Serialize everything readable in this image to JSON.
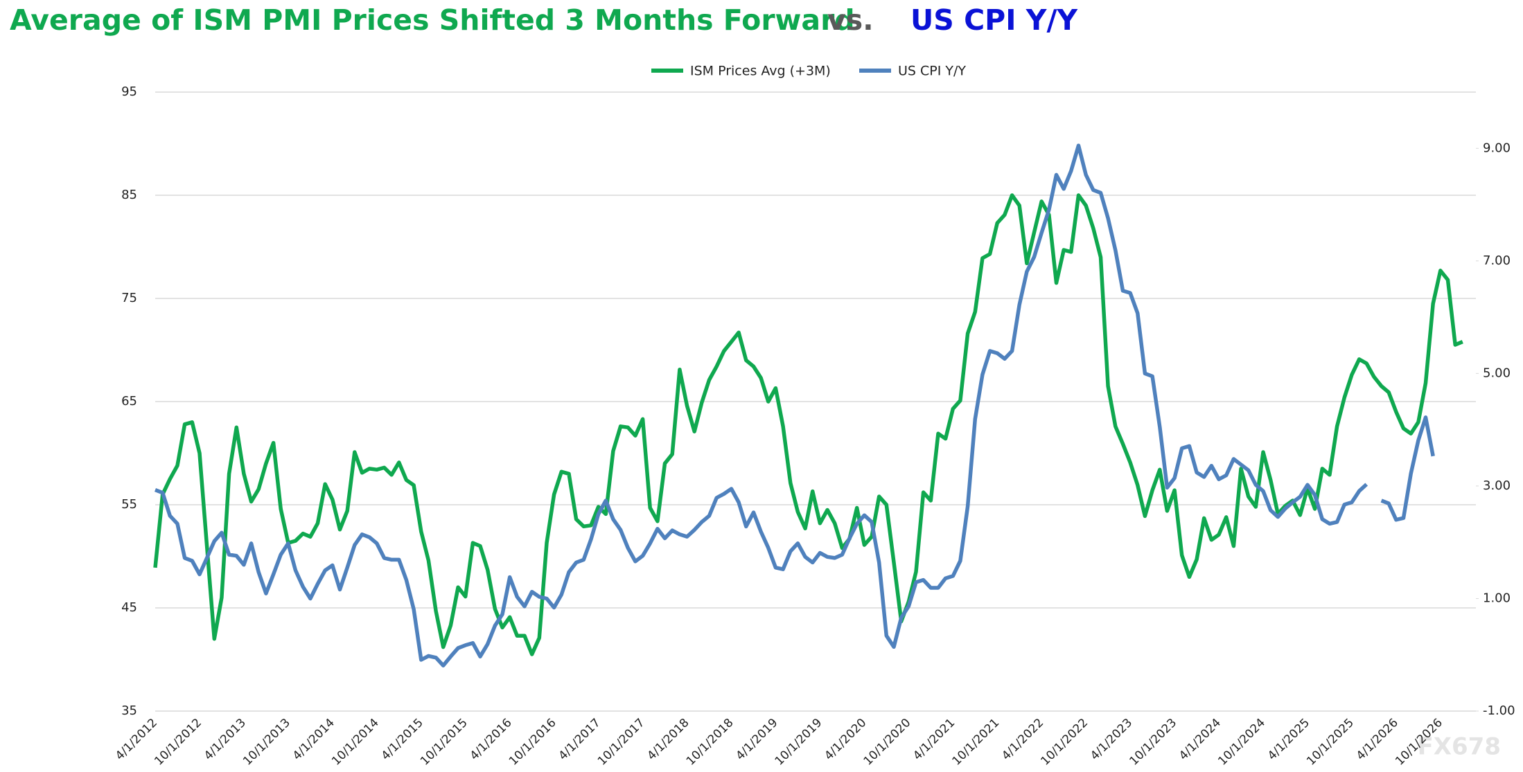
{
  "chart_data": {
    "type": "line",
    "title_parts": [
      "Average of ISM PMI Prices Shifted 3 Months Forward",
      "vs.",
      "US CPI Y/Y"
    ],
    "title_colors": [
      "#0fa84f",
      "#595959",
      "#0a12d6"
    ],
    "watermark": "FX678",
    "legend": "top",
    "grid": true,
    "categories": [
      "4/1/2012",
      null,
      null,
      null,
      null,
      null,
      "10/1/2012",
      null,
      null,
      null,
      null,
      null,
      "4/1/2013",
      null,
      null,
      null,
      null,
      null,
      "10/1/2013",
      null,
      null,
      null,
      null,
      null,
      "4/1/2014",
      null,
      null,
      null,
      null,
      null,
      "10/1/2014",
      null,
      null,
      null,
      null,
      null,
      "4/1/2015",
      null,
      null,
      null,
      null,
      null,
      "10/1/2015",
      null,
      null,
      null,
      null,
      null,
      "4/1/2016",
      null,
      null,
      null,
      null,
      null,
      "10/1/2016",
      null,
      null,
      null,
      null,
      null,
      "4/1/2017",
      null,
      null,
      null,
      null,
      null,
      "10/1/2017",
      null,
      null,
      null,
      null,
      null,
      "4/1/2018",
      null,
      null,
      null,
      null,
      null,
      "10/1/2018",
      null,
      null,
      null,
      null,
      null,
      "4/1/2019",
      null,
      null,
      null,
      null,
      null,
      "10/1/2019",
      null,
      null,
      null,
      null,
      null,
      "4/1/2020",
      null,
      null,
      null,
      null,
      null,
      "10/1/2020",
      null,
      null,
      null,
      null,
      null,
      "4/1/2021",
      null,
      null,
      null,
      null,
      null,
      "10/1/2021",
      null,
      null,
      null,
      null,
      null,
      "4/1/2022",
      null,
      null,
      null,
      null,
      null,
      "10/1/2022",
      null,
      null,
      null,
      null,
      null,
      "4/1/2023",
      null,
      null,
      null,
      null,
      null,
      "10/1/2023",
      null,
      null,
      null,
      null,
      null,
      "4/1/2024",
      null,
      null,
      null,
      null,
      null,
      "10/1/2024",
      null,
      null,
      null,
      null,
      null,
      "4/1/2025",
      null,
      null,
      null,
      null,
      null,
      "10/1/2025",
      null,
      null,
      null,
      null,
      null,
      "4/1/2026",
      null,
      null,
      null,
      null,
      null,
      "10/1/2026",
      null,
      null,
      null
    ],
    "ylim": [
      35,
      95
    ],
    "yticks": [
      35,
      45,
      55,
      65,
      75,
      85,
      95
    ],
    "y2lim": [
      -1,
      10
    ],
    "y2ticks": [
      {
        "value": -1,
        "label": "-1.00"
      },
      {
        "value": 1,
        "label": "1.00"
      },
      {
        "value": 3,
        "label": "3.00"
      },
      {
        "value": 5,
        "label": "5.00"
      },
      {
        "value": 7,
        "label": "7.00"
      },
      {
        "value": 9,
        "label": "9.00"
      }
    ],
    "series": [
      {
        "name": "ISM Prices Avg (+3M)",
        "color": "#0fa84f",
        "axis": "y",
        "values": [
          48.9,
          56,
          57.5,
          58.8,
          62.8,
          63,
          60,
          51,
          42,
          46,
          58,
          62.5,
          58,
          55.3,
          56.5,
          59,
          61,
          54.6,
          51.3,
          51.5,
          52.2,
          51.9,
          53.2,
          57,
          55.5,
          52.6,
          54.4,
          60.1,
          58.1,
          58.5,
          58.4,
          58.6,
          57.9,
          59.1,
          57.4,
          56.9,
          52.4,
          49.6,
          44.7,
          41.2,
          43.3,
          47,
          46.1,
          51.3,
          51,
          48.7,
          44.9,
          43.1,
          44.1,
          42.3,
          42.3,
          40.5,
          42.1,
          51.3,
          56,
          58.2,
          58,
          53.6,
          52.9,
          53,
          54.8,
          54.1,
          60.2,
          62.6,
          62.5,
          61.7,
          63.3,
          54.7,
          53.4,
          59,
          59.9,
          68.1,
          64.6,
          62.1,
          64.9,
          67.1,
          68.4,
          69.9,
          70.8,
          71.7,
          69,
          68.4,
          67.3,
          65,
          66.3,
          62.6,
          57.1,
          54.3,
          52.7,
          56.3,
          53.2,
          54.5,
          53.2,
          50.8,
          51.7,
          54.7,
          51.1,
          51.9,
          55.8,
          55,
          49.4,
          43.7,
          45.6,
          48.5,
          56.2,
          55.4,
          61.9,
          61.4,
          64.3,
          65.1,
          71.6,
          73.7,
          78.9,
          79.3,
          82.3,
          83.1,
          85,
          84,
          78.4,
          81.4,
          84.4,
          83.1,
          76.5,
          79.7,
          79.5,
          85,
          84,
          81.8,
          79,
          66.5,
          62.6,
          60.9,
          59.1,
          56.9,
          53.9,
          56.4,
          58.4,
          54.4,
          56.4,
          50.1,
          48,
          49.7,
          53.7,
          51.6,
          52.1,
          53.8,
          51,
          58.5,
          55.8,
          54.8,
          60.1,
          57.4,
          54.1,
          54.9,
          55.4,
          54,
          56.6,
          54.6,
          58.5,
          57.9,
          62.6,
          65.4,
          67.6,
          69.1,
          68.7,
          67.4,
          66.5,
          65.9,
          64,
          62.4,
          61.9,
          63,
          66.8,
          74.5,
          77.7,
          76.8,
          70.5,
          70.8
        ]
      },
      {
        "name": "US CPI Y/Y",
        "color": "#4f81bd",
        "axis": "y2",
        "values": [
          2.93,
          2.88,
          2.47,
          2.33,
          1.72,
          1.67,
          1.43,
          1.72,
          2.02,
          2.17,
          1.78,
          1.76,
          1.6,
          1.98,
          1.47,
          1.09,
          1.43,
          1.78,
          1.98,
          1.5,
          1.21,
          1,
          1.26,
          1.5,
          1.59,
          1.16,
          1.55,
          1.95,
          2.14,
          2.09,
          1.98,
          1.72,
          1.69,
          1.69,
          1.33,
          0.81,
          -0.09,
          -0.02,
          -0.05,
          -0.19,
          -0.03,
          0.12,
          0.17,
          0.21,
          -0.03,
          0.19,
          0.52,
          0.72,
          1.38,
          1.03,
          0.86,
          1.12,
          1.03,
          1,
          0.84,
          1.07,
          1.47,
          1.64,
          1.69,
          2.05,
          2.5,
          2.74,
          2.41,
          2.22,
          1.9,
          1.66,
          1.76,
          1.98,
          2.24,
          2.07,
          2.21,
          2.14,
          2.1,
          2.22,
          2.36,
          2.47,
          2.79,
          2.86,
          2.95,
          2.71,
          2.28,
          2.53,
          2.19,
          1.9,
          1.55,
          1.52,
          1.84,
          1.98,
          1.74,
          1.64,
          1.81,
          1.74,
          1.72,
          1.78,
          2.07,
          2.33,
          2.48,
          2.36,
          1.64,
          0.34,
          0.14,
          0.66,
          0.86,
          1.29,
          1.33,
          1.19,
          1.19,
          1.36,
          1.4,
          1.67,
          2.64,
          4.19,
          4.98,
          5.4,
          5.36,
          5.26,
          5.4,
          6.22,
          6.81,
          7.07,
          7.5,
          7.91,
          8.53,
          8.28,
          8.6,
          9.05,
          8.53,
          8.26,
          8.21,
          7.76,
          7.19,
          6.47,
          6.43,
          6.07,
          5,
          4.95,
          4.05,
          2.97,
          3.14,
          3.67,
          3.71,
          3.24,
          3.16,
          3.36,
          3.12,
          3.19,
          3.48,
          3.38,
          3.28,
          3.02,
          2.91,
          2.57,
          2.45,
          2.6,
          2.71,
          2.81,
          3.02,
          2.84,
          2.41,
          2.33,
          2.36,
          2.67,
          2.71,
          2.91,
          3.03,
          null,
          2.74,
          2.69,
          2.4,
          2.43,
          3.22,
          3.81,
          4.22,
          3.53,
          null,
          null,
          null,
          null
        ]
      }
    ]
  }
}
